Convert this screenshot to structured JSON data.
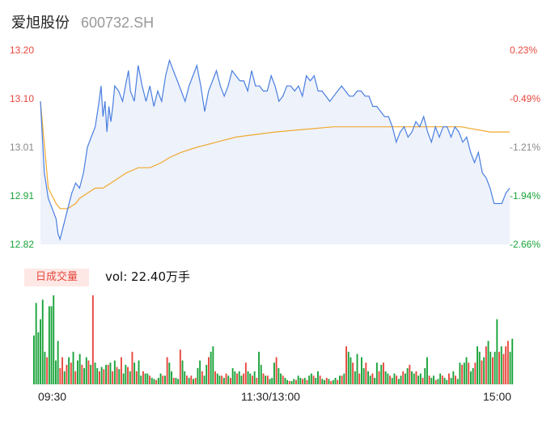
{
  "header": {
    "name": "爱旭股份",
    "code": "600732.SH"
  },
  "y_labels_left": [
    "13.20",
    "13.10",
    "13.01",
    "12.91",
    "12.82"
  ],
  "y_labels_right": [
    "0.23%",
    "-0.49%",
    "-1.21%",
    "-1.94%",
    "-2.66%"
  ],
  "volume": {
    "tag": "日成交量",
    "text": "vol: 22.40万手"
  },
  "x_labels": [
    "09:30",
    "11:30/13:00",
    "15:00"
  ],
  "colors": {
    "price_line": "#4a7fe0",
    "avg_line": "#f0a830",
    "up": "#e8473d",
    "down": "#1aa33a",
    "area_fill": "#eef2fb"
  },
  "chart_data": {
    "type": "line",
    "y_range": [
      12.82,
      13.2
    ],
    "pct_range": [
      -2.66,
      0.23
    ],
    "x_range_minutes": [
      0,
      240
    ],
    "price": [
      [
        0,
        13.1
      ],
      [
        2,
        12.96
      ],
      [
        4,
        12.91
      ],
      [
        6,
        12.89
      ],
      [
        8,
        12.87
      ],
      [
        9,
        12.84
      ],
      [
        10,
        12.83
      ],
      [
        12,
        12.86
      ],
      [
        14,
        12.89
      ],
      [
        16,
        12.92
      ],
      [
        18,
        12.94
      ],
      [
        20,
        12.93
      ],
      [
        22,
        12.96
      ],
      [
        24,
        13.01
      ],
      [
        26,
        13.03
      ],
      [
        28,
        13.05
      ],
      [
        30,
        13.1
      ],
      [
        31,
        13.13
      ],
      [
        32,
        13.07
      ],
      [
        33,
        13.1
      ],
      [
        34,
        13.04
      ],
      [
        35,
        13.09
      ],
      [
        36,
        13.06
      ],
      [
        37,
        13.09
      ],
      [
        38,
        13.13
      ],
      [
        40,
        13.12
      ],
      [
        42,
        13.1
      ],
      [
        44,
        13.14
      ],
      [
        45,
        13.16
      ],
      [
        46,
        13.12
      ],
      [
        48,
        13.1
      ],
      [
        50,
        13.17
      ],
      [
        52,
        13.13
      ],
      [
        54,
        13.1
      ],
      [
        56,
        13.13
      ],
      [
        58,
        13.09
      ],
      [
        60,
        13.12
      ],
      [
        62,
        13.1
      ],
      [
        64,
        13.15
      ],
      [
        66,
        13.18
      ],
      [
        68,
        13.16
      ],
      [
        70,
        13.14
      ],
      [
        72,
        13.12
      ],
      [
        74,
        13.1
      ],
      [
        76,
        13.13
      ],
      [
        78,
        13.15
      ],
      [
        80,
        13.17
      ],
      [
        82,
        13.13
      ],
      [
        84,
        13.08
      ],
      [
        86,
        13.12
      ],
      [
        88,
        13.14
      ],
      [
        90,
        13.16
      ],
      [
        92,
        13.13
      ],
      [
        94,
        13.11
      ],
      [
        96,
        13.13
      ],
      [
        98,
        13.16
      ],
      [
        100,
        13.15
      ],
      [
        102,
        13.14
      ],
      [
        104,
        13.14
      ],
      [
        106,
        13.12
      ],
      [
        108,
        13.16
      ],
      [
        110,
        13.13
      ],
      [
        112,
        13.13
      ],
      [
        114,
        13.12
      ],
      [
        116,
        13.12
      ],
      [
        118,
        13.15
      ],
      [
        120,
        13.13
      ],
      [
        122,
        13.1
      ],
      [
        124,
        13.11
      ],
      [
        126,
        13.13
      ],
      [
        128,
        13.13
      ],
      [
        130,
        13.12
      ],
      [
        132,
        13.13
      ],
      [
        134,
        13.11
      ],
      [
        136,
        13.15
      ],
      [
        138,
        13.14
      ],
      [
        140,
        13.15
      ],
      [
        142,
        13.12
      ],
      [
        144,
        13.12
      ],
      [
        146,
        13.11
      ],
      [
        148,
        13.1
      ],
      [
        150,
        13.11
      ],
      [
        152,
        13.12
      ],
      [
        154,
        13.13
      ],
      [
        156,
        13.12
      ],
      [
        158,
        13.11
      ],
      [
        160,
        13.11
      ],
      [
        162,
        13.12
      ],
      [
        164,
        13.12
      ],
      [
        166,
        13.11
      ],
      [
        168,
        13.11
      ],
      [
        170,
        13.09
      ],
      [
        172,
        13.09
      ],
      [
        174,
        13.08
      ],
      [
        176,
        13.07
      ],
      [
        178,
        13.07
      ],
      [
        180,
        13.05
      ],
      [
        182,
        13.02
      ],
      [
        184,
        13.04
      ],
      [
        186,
        13.05
      ],
      [
        188,
        13.03
      ],
      [
        190,
        13.04
      ],
      [
        192,
        13.06
      ],
      [
        194,
        13.05
      ],
      [
        196,
        13.07
      ],
      [
        198,
        13.04
      ],
      [
        200,
        13.02
      ],
      [
        202,
        13.05
      ],
      [
        204,
        13.03
      ],
      [
        206,
        13.05
      ],
      [
        208,
        13.05
      ],
      [
        210,
        13.03
      ],
      [
        212,
        13.05
      ],
      [
        214,
        13.04
      ],
      [
        216,
        13.02
      ],
      [
        218,
        13.03
      ],
      [
        220,
        13.0
      ],
      [
        222,
        12.98
      ],
      [
        224,
        13.0
      ],
      [
        226,
        12.96
      ],
      [
        228,
        12.95
      ],
      [
        230,
        12.93
      ],
      [
        232,
        12.9
      ],
      [
        234,
        12.9
      ],
      [
        236,
        12.9
      ],
      [
        238,
        12.92
      ],
      [
        240,
        12.93
      ]
    ],
    "average": [
      [
        0,
        13.1
      ],
      [
        4,
        12.93
      ],
      [
        8,
        12.9
      ],
      [
        10,
        12.89
      ],
      [
        14,
        12.89
      ],
      [
        18,
        12.9
      ],
      [
        20,
        12.91
      ],
      [
        24,
        12.92
      ],
      [
        28,
        12.93
      ],
      [
        32,
        12.93
      ],
      [
        36,
        12.94
      ],
      [
        40,
        12.95
      ],
      [
        44,
        12.96
      ],
      [
        50,
        12.97
      ],
      [
        56,
        12.97
      ],
      [
        62,
        12.98
      ],
      [
        66,
        12.99
      ],
      [
        72,
        13.0
      ],
      [
        80,
        13.01
      ],
      [
        90,
        13.02
      ],
      [
        100,
        13.03
      ],
      [
        120,
        13.04
      ],
      [
        150,
        13.05
      ],
      [
        170,
        13.05
      ],
      [
        200,
        13.05
      ],
      [
        215,
        13.05
      ],
      [
        230,
        13.04
      ],
      [
        240,
        13.04
      ]
    ],
    "volume_bars": [
      {
        "v": 45,
        "up": false
      },
      {
        "v": 75,
        "up": false
      },
      {
        "v": 48,
        "up": false
      },
      {
        "v": 60,
        "up": false
      },
      {
        "v": 78,
        "up": false
      },
      {
        "v": 30,
        "up": false
      },
      {
        "v": 25,
        "up": true
      },
      {
        "v": 72,
        "up": false
      },
      {
        "v": 72,
        "up": false
      },
      {
        "v": 82,
        "up": false
      },
      {
        "v": 22,
        "up": false
      },
      {
        "v": 40,
        "up": false
      },
      {
        "v": 15,
        "up": true
      },
      {
        "v": 25,
        "up": true
      },
      {
        "v": 12,
        "up": false
      },
      {
        "v": 18,
        "up": true
      },
      {
        "v": 25,
        "up": false
      },
      {
        "v": 20,
        "up": true
      },
      {
        "v": 30,
        "up": false
      },
      {
        "v": 12,
        "up": true
      },
      {
        "v": 22,
        "up": false
      },
      {
        "v": 28,
        "up": false
      },
      {
        "v": 18,
        "up": true
      },
      {
        "v": 15,
        "up": false
      },
      {
        "v": 25,
        "up": false
      },
      {
        "v": 22,
        "up": true
      },
      {
        "v": 18,
        "up": false
      },
      {
        "v": 82,
        "up": true
      },
      {
        "v": 20,
        "up": false
      },
      {
        "v": 15,
        "up": false
      },
      {
        "v": 12,
        "up": true
      },
      {
        "v": 16,
        "up": false
      },
      {
        "v": 14,
        "up": true
      },
      {
        "v": 18,
        "up": false
      },
      {
        "v": 18,
        "up": true
      },
      {
        "v": 20,
        "up": false
      },
      {
        "v": 12,
        "up": true
      },
      {
        "v": 22,
        "up": false
      },
      {
        "v": 16,
        "up": true
      },
      {
        "v": 14,
        "up": false
      },
      {
        "v": 25,
        "up": true
      },
      {
        "v": 10,
        "up": false
      },
      {
        "v": 18,
        "up": false
      },
      {
        "v": 16,
        "up": true
      },
      {
        "v": 12,
        "up": false
      },
      {
        "v": 30,
        "up": true
      },
      {
        "v": 20,
        "up": false
      },
      {
        "v": 12,
        "up": true
      },
      {
        "v": 22,
        "up": false
      },
      {
        "v": 8,
        "up": false
      },
      {
        "v": 12,
        "up": true
      },
      {
        "v": 10,
        "up": false
      },
      {
        "v": 10,
        "up": false
      },
      {
        "v": 8,
        "up": true
      },
      {
        "v": 6,
        "up": false
      },
      {
        "v": 5,
        "up": false
      },
      {
        "v": 4,
        "up": true
      },
      {
        "v": 6,
        "up": false
      },
      {
        "v": 10,
        "up": false
      },
      {
        "v": 8,
        "up": true
      },
      {
        "v": 8,
        "up": false
      },
      {
        "v": 25,
        "up": true
      },
      {
        "v": 20,
        "up": false
      },
      {
        "v": 12,
        "up": false
      },
      {
        "v": 6,
        "up": true
      },
      {
        "v": 6,
        "up": false
      },
      {
        "v": 5,
        "up": false
      },
      {
        "v": 32,
        "up": true
      },
      {
        "v": 22,
        "up": false
      },
      {
        "v": 12,
        "up": false
      },
      {
        "v": 8,
        "up": true
      },
      {
        "v": 6,
        "up": false
      },
      {
        "v": 8,
        "up": true
      },
      {
        "v": 5,
        "up": false
      },
      {
        "v": 6,
        "up": true
      },
      {
        "v": 15,
        "up": false
      },
      {
        "v": 22,
        "up": false
      },
      {
        "v": 12,
        "up": true
      },
      {
        "v": 8,
        "up": false
      },
      {
        "v": 18,
        "up": false
      },
      {
        "v": 25,
        "up": true
      },
      {
        "v": 30,
        "up": false
      },
      {
        "v": 35,
        "up": false
      },
      {
        "v": 12,
        "up": true
      },
      {
        "v": 10,
        "up": false
      },
      {
        "v": 8,
        "up": false
      },
      {
        "v": 8,
        "up": true
      },
      {
        "v": 6,
        "up": false
      },
      {
        "v": 10,
        "up": true
      },
      {
        "v": 8,
        "up": false
      },
      {
        "v": 6,
        "up": true
      },
      {
        "v": 15,
        "up": false
      },
      {
        "v": 12,
        "up": false
      },
      {
        "v": 10,
        "up": true
      },
      {
        "v": 12,
        "up": false
      },
      {
        "v": 8,
        "up": false
      },
      {
        "v": 10,
        "up": true
      },
      {
        "v": 20,
        "up": true
      },
      {
        "v": 12,
        "up": false
      },
      {
        "v": 10,
        "up": false
      },
      {
        "v": 8,
        "up": true
      },
      {
        "v": 12,
        "up": false
      },
      {
        "v": 6,
        "up": true
      },
      {
        "v": 30,
        "up": false
      },
      {
        "v": 18,
        "up": false
      },
      {
        "v": 10,
        "up": true
      },
      {
        "v": 8,
        "up": false
      },
      {
        "v": 8,
        "up": true
      },
      {
        "v": 5,
        "up": false
      },
      {
        "v": 6,
        "up": false
      },
      {
        "v": 20,
        "up": false
      },
      {
        "v": 25,
        "up": true
      },
      {
        "v": 15,
        "up": false
      },
      {
        "v": 10,
        "up": false
      },
      {
        "v": 8,
        "up": true
      },
      {
        "v": 6,
        "up": false
      },
      {
        "v": 4,
        "up": false
      },
      {
        "v": 3,
        "up": true
      },
      {
        "v": 3,
        "up": false
      },
      {
        "v": 5,
        "up": false
      },
      {
        "v": 4,
        "up": true
      },
      {
        "v": 8,
        "up": false
      },
      {
        "v": 6,
        "up": false
      },
      {
        "v": 5,
        "up": true
      },
      {
        "v": 6,
        "up": false
      },
      {
        "v": 4,
        "up": true
      },
      {
        "v": 8,
        "up": false
      },
      {
        "v": 10,
        "up": false
      },
      {
        "v": 8,
        "up": true
      },
      {
        "v": 6,
        "up": false
      },
      {
        "v": 12,
        "up": false
      },
      {
        "v": 8,
        "up": true
      },
      {
        "v": 5,
        "up": false
      },
      {
        "v": 4,
        "up": false
      },
      {
        "v": 6,
        "up": true
      },
      {
        "v": 5,
        "up": false
      },
      {
        "v": 3,
        "up": true
      },
      {
        "v": 4,
        "up": false
      },
      {
        "v": 6,
        "up": false
      },
      {
        "v": 4,
        "up": true
      },
      {
        "v": 8,
        "up": false
      },
      {
        "v": 8,
        "up": true
      },
      {
        "v": 10,
        "up": false
      },
      {
        "v": 35,
        "up": true
      },
      {
        "v": 30,
        "up": false
      },
      {
        "v": 25,
        "up": false
      },
      {
        "v": 20,
        "up": true
      },
      {
        "v": 12,
        "up": false
      },
      {
        "v": 28,
        "up": false
      },
      {
        "v": 10,
        "up": true
      },
      {
        "v": 25,
        "up": false
      },
      {
        "v": 15,
        "up": false
      },
      {
        "v": 20,
        "up": true
      },
      {
        "v": 12,
        "up": false
      },
      {
        "v": 8,
        "up": false
      },
      {
        "v": 10,
        "up": true
      },
      {
        "v": 6,
        "up": false
      },
      {
        "v": 20,
        "up": false
      },
      {
        "v": 12,
        "up": true
      },
      {
        "v": 18,
        "up": false
      },
      {
        "v": 20,
        "up": true
      },
      {
        "v": 12,
        "up": false
      },
      {
        "v": 10,
        "up": false
      },
      {
        "v": 8,
        "up": true
      },
      {
        "v": 6,
        "up": false
      },
      {
        "v": 10,
        "up": false
      },
      {
        "v": 8,
        "up": true
      },
      {
        "v": 5,
        "up": false
      },
      {
        "v": 8,
        "up": false
      },
      {
        "v": 12,
        "up": true
      },
      {
        "v": 10,
        "up": false
      },
      {
        "v": 15,
        "up": false
      },
      {
        "v": 18,
        "up": true
      },
      {
        "v": 12,
        "up": false
      },
      {
        "v": 10,
        "up": false
      },
      {
        "v": 12,
        "up": true
      },
      {
        "v": 8,
        "up": false
      },
      {
        "v": 10,
        "up": false
      },
      {
        "v": 6,
        "up": true
      },
      {
        "v": 15,
        "up": false
      },
      {
        "v": 25,
        "up": false
      },
      {
        "v": 8,
        "up": true
      },
      {
        "v": 6,
        "up": false
      },
      {
        "v": 8,
        "up": false
      },
      {
        "v": 4,
        "up": true
      },
      {
        "v": 5,
        "up": false
      },
      {
        "v": 10,
        "up": false
      },
      {
        "v": 8,
        "up": true
      },
      {
        "v": 6,
        "up": false
      },
      {
        "v": 4,
        "up": false
      },
      {
        "v": 10,
        "up": true
      },
      {
        "v": 6,
        "up": false
      },
      {
        "v": 12,
        "up": false
      },
      {
        "v": 8,
        "up": true
      },
      {
        "v": 5,
        "up": false
      },
      {
        "v": 20,
        "up": false
      },
      {
        "v": 18,
        "up": true
      },
      {
        "v": 20,
        "up": false
      },
      {
        "v": 25,
        "up": false
      },
      {
        "v": 20,
        "up": true
      },
      {
        "v": 12,
        "up": false
      },
      {
        "v": 15,
        "up": false
      },
      {
        "v": 20,
        "up": true
      },
      {
        "v": 35,
        "up": false
      },
      {
        "v": 30,
        "up": false
      },
      {
        "v": 22,
        "up": true
      },
      {
        "v": 25,
        "up": false
      },
      {
        "v": 35,
        "up": true
      },
      {
        "v": 40,
        "up": false
      },
      {
        "v": 30,
        "up": false
      },
      {
        "v": 25,
        "up": true
      },
      {
        "v": 30,
        "up": false
      },
      {
        "v": 60,
        "up": false
      },
      {
        "v": 30,
        "up": true
      },
      {
        "v": 35,
        "up": false
      },
      {
        "v": 28,
        "up": true
      },
      {
        "v": 35,
        "up": true
      },
      {
        "v": 40,
        "up": true
      },
      {
        "v": 30,
        "up": false
      },
      {
        "v": 42,
        "up": false
      }
    ]
  }
}
